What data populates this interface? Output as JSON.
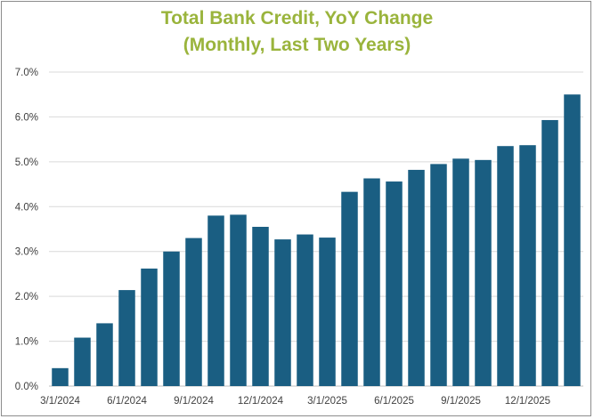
{
  "chart_data": {
    "type": "bar",
    "title_lines": [
      "Total Bank Credit, YoY Change",
      "(Monthly, Last Two Years)"
    ],
    "xlabel": "",
    "ylabel": "",
    "categories": [
      "3/1/2024",
      "4/1/2024",
      "5/1/2024",
      "6/1/2024",
      "7/1/2024",
      "8/1/2024",
      "9/1/2024",
      "10/1/2024",
      "11/1/2024",
      "12/1/2024",
      "1/1/2025",
      "2/1/2025",
      "3/1/2025",
      "4/1/2025",
      "5/1/2025",
      "6/1/2025",
      "7/1/2025",
      "8/1/2025",
      "9/1/2025",
      "10/1/2025",
      "11/1/2025",
      "12/1/2025",
      "1/1/2026",
      "2/1/2026"
    ],
    "visible_x_tick_labels": [
      "3/1/2024",
      "6/1/2024",
      "9/1/2024",
      "12/1/2024",
      "3/1/2025",
      "6/1/2025",
      "9/1/2025",
      "12/1/2025"
    ],
    "values": [
      0.4,
      1.08,
      1.4,
      2.14,
      2.62,
      3.0,
      3.3,
      3.8,
      3.82,
      3.55,
      3.27,
      3.38,
      3.31,
      4.33,
      4.63,
      4.56,
      4.82,
      4.95,
      5.07,
      5.04,
      5.35,
      5.37,
      5.93,
      6.5
    ],
    "y_tick_labels": [
      "0.0%",
      "1.0%",
      "2.0%",
      "3.0%",
      "4.0%",
      "5.0%",
      "6.0%",
      "7.0%"
    ],
    "ylim": [
      0,
      7
    ],
    "grid": true,
    "bar_color": "#1a5e82",
    "title_color": "#9ab43c",
    "legend": "none"
  }
}
